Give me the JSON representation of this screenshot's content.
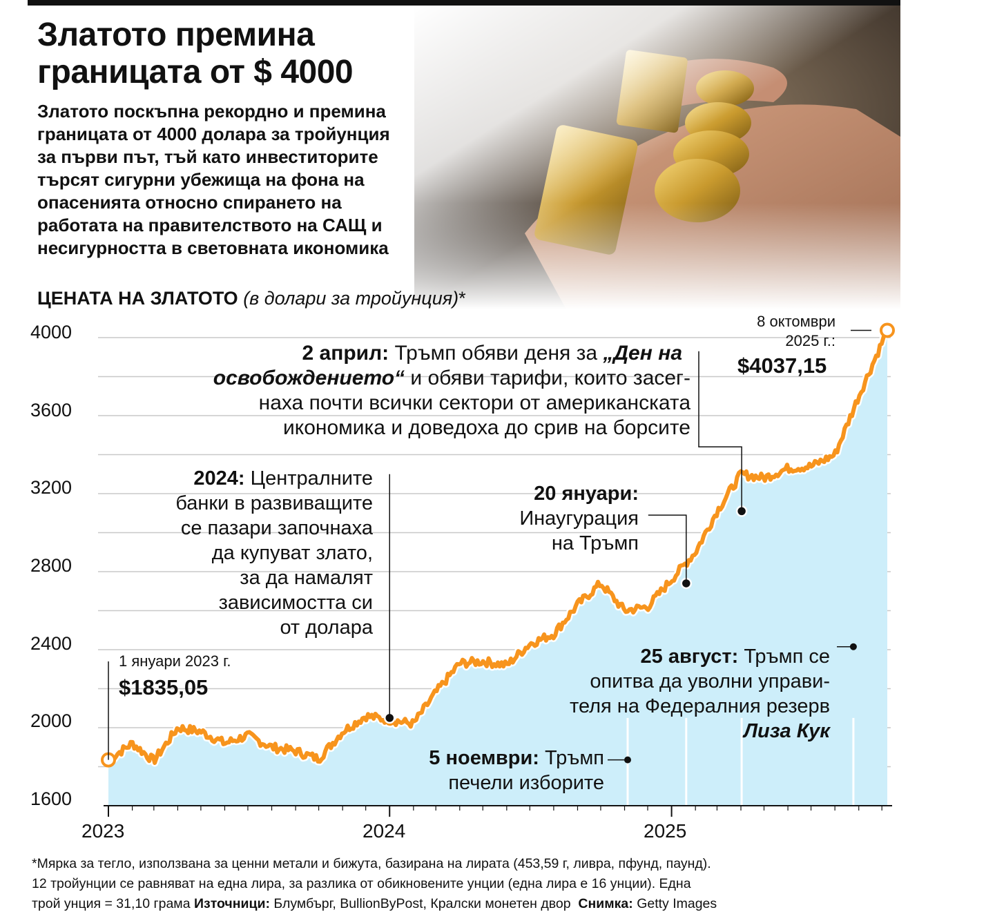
{
  "header": {
    "title_line1": "Златото премина",
    "title_line2": "границата от $ 4000",
    "subtitle_lines": [
      "Златото поскъпна рекордно и премина",
      "границата от 4000 долара за тройунция",
      "за първи път, тъй като инвеститорите",
      "търсят сигурни убежища на фона на",
      "опасенията относно спирането на",
      "работата на правителството на САЩ и",
      "несигурността в световната икономика"
    ]
  },
  "chart_label": {
    "main": "ЦЕНАТА НА ЗЛАТОТО",
    "unit": "(в долари за тройунция)",
    "asterisk": "*"
  },
  "colors": {
    "line": "#f7941d",
    "area": "#cdeefa",
    "grid": "#c8c8c8",
    "photo_gold": "#c99a2e"
  },
  "annotations": {
    "start": {
      "date": "1 януари 2023 г.",
      "value": "$1835,05"
    },
    "end": {
      "date1": "8 октомври",
      "date2": "2025 г.:",
      "value": "$4037,15"
    },
    "central_banks": {
      "bold": "2024:",
      "lines": [
        "Централните",
        "банки в развиващите",
        "се пазари започнаха",
        "да купуват злато,",
        "за да намалят",
        "зависимостта си",
        "от долара"
      ]
    },
    "april": {
      "bold": "2 април:",
      "line1_rest": "Тръмп обяви деня за",
      "quote": "„Ден на освобождението“",
      "line2_rest": "и обяви тарифи, които засег-",
      "line3": "наха почти всички сектори от американската",
      "line4": "икономика и доведоха до срив на борсите"
    },
    "inauguration": {
      "bold": "20 януари:",
      "line1": "Инаугурация",
      "line2": "на Тръмп"
    },
    "election": {
      "bold": "5 ноември:",
      "rest": "Тръмп",
      "line2": "печели изборите"
    },
    "august": {
      "bold": "25 август:",
      "rest": "Тръмп се",
      "line2": "опитва да уволни управи-",
      "line3": "теля на Федералния резерв",
      "name": "Лиза Кук"
    }
  },
  "footnote": {
    "line1": "*Мярка за тегло, използвана за ценни метали и бижута, базирана на лирата (453,59 г, ливра, пфунд, паунд).",
    "line2": "12 тройунции се равняват на една лира, за разлика от обикновените унции (една лира е 16 унции). Една",
    "line3_a": "трой унция = 31,10 грама",
    "sources_label": "Източници:",
    "sources": "Блумбърг, BullionByPost, Кралски монетен двор",
    "photo_label": "Снимка:",
    "photo": "Getty Images"
  },
  "chart_data": {
    "type": "area",
    "title": "ЦЕНАТА НА ЗЛАТОТО",
    "ylabel": "(в долари за тройунция)",
    "ylim": [
      1600,
      4050
    ],
    "yticks": [
      "4000",
      "3600",
      "3200",
      "2800",
      "2400",
      "2000",
      "1600"
    ],
    "xticks": [
      "2023",
      "2024",
      "2025"
    ],
    "grid": true,
    "x": [
      "2023-01-01",
      "2023-02-01",
      "2023-03-01",
      "2023-04-01",
      "2023-05-01",
      "2023-06-01",
      "2023-07-01",
      "2023-08-01",
      "2023-09-01",
      "2023-10-01",
      "2023-11-01",
      "2023-12-01",
      "2024-01-01",
      "2024-02-01",
      "2024-03-01",
      "2024-04-01",
      "2024-05-01",
      "2024-06-01",
      "2024-07-01",
      "2024-08-01",
      "2024-09-01",
      "2024-10-01",
      "2024-11-01",
      "2024-12-01",
      "2025-01-01",
      "2025-02-01",
      "2025-03-01",
      "2025-04-01",
      "2025-05-01",
      "2025-06-01",
      "2025-07-01",
      "2025-08-01",
      "2025-09-01",
      "2025-10-08"
    ],
    "series": [
      {
        "values": [
          1835.05,
          1920,
          1830,
          2000,
          1980,
          1920,
          1960,
          1900,
          1880,
          1840,
          1980,
          2060,
          2040,
          2020,
          2180,
          2330,
          2340,
          2320,
          2430,
          2480,
          2630,
          2740,
          2600,
          2620,
          2760,
          2900,
          3110,
          3300,
          3280,
          3330,
          3340,
          3400,
          3700,
          4037.15
        ]
      }
    ],
    "markers": [
      {
        "x": "2023-01-01",
        "y": 1835.05
      },
      {
        "x": "2024-01-01",
        "y": 2050
      },
      {
        "x": "2025-01-20",
        "y": 2740
      },
      {
        "x": "2025-04-02",
        "y": 3110
      },
      {
        "x": "2025-10-08",
        "y": 4037.15
      }
    ]
  }
}
